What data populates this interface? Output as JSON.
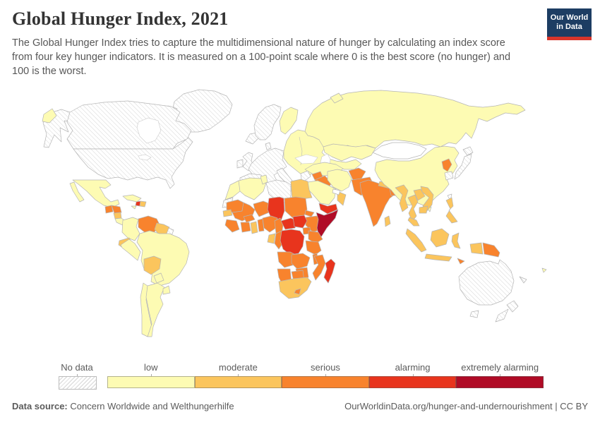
{
  "header": {
    "title": "Global Hunger Index, 2021",
    "subtitle": "The Global Hunger Index tries to capture the multidimensional nature of hunger by calculating an index score from four key hunger indicators. It is measured on a 100-point scale where 0 is the best score (no hunger) and 100 is the worst."
  },
  "logo": {
    "line1": "Our World",
    "line2": "in Data",
    "bg_color": "#1d3d63",
    "accent_color": "#d9352b"
  },
  "legend": {
    "no_data_label": "No data"
  },
  "footer": {
    "source_label": "Data source:",
    "source_value": " Concern Worldwide and Welthungerhilfe",
    "right_text": "OurWorldinData.org/hunger-and-undernourishment | CC BY"
  },
  "chart_data": {
    "type": "choropleth_map",
    "title": "Global Hunger Index, 2021",
    "unit": "Global Hunger Index severity category (100-point scale)",
    "legend_position": "bottom",
    "legend_categories": [
      {
        "key": "low",
        "label": "low"
      },
      {
        "key": "moderate",
        "label": "moderate"
      },
      {
        "key": "serious",
        "label": "serious"
      },
      {
        "key": "alarming",
        "label": "alarming"
      },
      {
        "key": "extremely_alarming",
        "label": "extremely alarming"
      }
    ],
    "colors": {
      "low": "#FDFBB3",
      "moderate": "#FBC55D",
      "serious": "#F8832D",
      "alarming": "#E8341D",
      "extremely_alarming": "#B00B26",
      "white": "#FFFFFF"
    },
    "countries": [
      {
        "id": "greenland",
        "name": "Greenland",
        "category": "no_data"
      },
      {
        "id": "arctic-islands-1",
        "name": "Canadian Arctic Islands",
        "category": "no_data"
      },
      {
        "id": "arctic-islands-2",
        "name": "Canadian Arctic Islands",
        "category": "no_data"
      },
      {
        "id": "arctic-islands-3",
        "name": "Canadian Arctic Islands",
        "category": "no_data"
      },
      {
        "id": "alaska",
        "name": "United States (Alaska)",
        "category": "no_data"
      },
      {
        "id": "canada",
        "name": "Canada",
        "category": "no_data"
      },
      {
        "id": "usa",
        "name": "United States",
        "category": "no_data"
      },
      {
        "id": "iceland",
        "name": "Iceland",
        "category": "no_data"
      },
      {
        "id": "norway-sweden",
        "name": "Norway and Sweden",
        "category": "no_data"
      },
      {
        "id": "denmark",
        "name": "Denmark",
        "category": "no_data"
      },
      {
        "id": "uk",
        "name": "United Kingdom",
        "category": "no_data"
      },
      {
        "id": "ireland",
        "name": "Ireland",
        "category": "no_data"
      },
      {
        "id": "western-europe",
        "name": "Western Europe",
        "category": "no_data"
      },
      {
        "id": "iberia",
        "name": "Spain and Portugal",
        "category": "no_data"
      },
      {
        "id": "italy",
        "name": "Italy",
        "category": "no_data"
      },
      {
        "id": "sicily",
        "name": "Italy (Sicily)",
        "category": "no_data"
      },
      {
        "id": "greece",
        "name": "Greece",
        "category": "no_data"
      },
      {
        "id": "libya",
        "name": "Libya",
        "category": "no_data"
      },
      {
        "id": "western-sahara",
        "name": "Western Sahara",
        "category": "no_data"
      },
      {
        "id": "french-guiana",
        "name": "French Guiana",
        "category": "no_data"
      },
      {
        "id": "japan-hokkaido",
        "name": "Japan (Hokkaido)",
        "category": "no_data"
      },
      {
        "id": "japan-main",
        "name": "Japan",
        "category": "no_data"
      },
      {
        "id": "south-korea",
        "name": "South Korea",
        "category": "no_data"
      },
      {
        "id": "australia",
        "name": "Australia",
        "category": "no_data"
      },
      {
        "id": "tasmania",
        "name": "Australia (Tasmania)",
        "category": "no_data"
      },
      {
        "id": "new-zealand-north",
        "name": "New Zealand (North Island)",
        "category": "no_data"
      },
      {
        "id": "new-zealand-south",
        "name": "New Zealand (South Island)",
        "category": "no_data"
      },
      {
        "id": "new-caledonia",
        "name": "New Caledonia",
        "category": "no_data"
      },
      {
        "id": "mongolia",
        "name": "Mongolia",
        "category": "white"
      },
      {
        "id": "uae",
        "name": "United Arab Emirates",
        "category": "white"
      },
      {
        "id": "taiwan",
        "name": "Taiwan",
        "category": "white"
      },
      {
        "id": "chukotka",
        "name": "Russia (Chukotka)",
        "category": "low"
      },
      {
        "id": "russia",
        "name": "Russia",
        "category": "low"
      },
      {
        "id": "novaya-zemlya",
        "name": "Russia (Novaya Zemlya)",
        "category": "low"
      },
      {
        "id": "finland",
        "name": "Finland",
        "category": "low"
      },
      {
        "id": "eastern-europe",
        "name": "Eastern Europe",
        "category": "low"
      },
      {
        "id": "turkey",
        "name": "Turkey",
        "category": "low"
      },
      {
        "id": "iran",
        "name": "Iran",
        "category": "low"
      },
      {
        "id": "saudi-arabia",
        "name": "Saudi Arabia",
        "category": "low"
      },
      {
        "id": "kazakhstan",
        "name": "Kazakhstan",
        "category": "low"
      },
      {
        "id": "central-asia-south",
        "name": "Uzbekistan and Turkmenistan",
        "category": "low"
      },
      {
        "id": "china",
        "name": "China",
        "category": "low"
      },
      {
        "id": "hainan",
        "name": "China (Hainan)",
        "category": "low"
      },
      {
        "id": "mexico",
        "name": "Mexico",
        "category": "low"
      },
      {
        "id": "baja",
        "name": "Mexico (Baja California)",
        "category": "low"
      },
      {
        "id": "cuba",
        "name": "Cuba",
        "category": "low"
      },
      {
        "id": "jamaica",
        "name": "Jamaica",
        "category": "low"
      },
      {
        "id": "costa-rica-panama",
        "name": "Costa Rica and Panama",
        "category": "low"
      },
      {
        "id": "colombia",
        "name": "Colombia",
        "category": "low"
      },
      {
        "id": "peru",
        "name": "Peru",
        "category": "low"
      },
      {
        "id": "brazil",
        "name": "Brazil",
        "category": "low"
      },
      {
        "id": "chile",
        "name": "Chile",
        "category": "low"
      },
      {
        "id": "argentina",
        "name": "Argentina",
        "category": "low"
      },
      {
        "id": "paraguay",
        "name": "Paraguay",
        "category": "low"
      },
      {
        "id": "uruguay",
        "name": "Uruguay",
        "category": "low"
      },
      {
        "id": "morocco",
        "name": "Morocco",
        "category": "low"
      },
      {
        "id": "algeria",
        "name": "Algeria",
        "category": "low"
      },
      {
        "id": "tunisia",
        "name": "Tunisia",
        "category": "low"
      },
      {
        "id": "fiji",
        "name": "Fiji",
        "category": "low"
      },
      {
        "id": "egypt",
        "name": "Egypt",
        "category": "moderate"
      },
      {
        "id": "guyana-suriname",
        "name": "Guyana and Suriname",
        "category": "moderate"
      },
      {
        "id": "ecuador",
        "name": "Ecuador",
        "category": "moderate"
      },
      {
        "id": "bolivia",
        "name": "Bolivia",
        "category": "moderate"
      },
      {
        "id": "senegal",
        "name": "Senegal",
        "category": "moderate"
      },
      {
        "id": "ghana",
        "name": "Ghana",
        "category": "moderate"
      },
      {
        "id": "gabon",
        "name": "Gabon",
        "category": "moderate"
      },
      {
        "id": "south-africa",
        "name": "South Africa",
        "category": "moderate"
      },
      {
        "id": "nepal",
        "name": "Nepal",
        "category": "moderate"
      },
      {
        "id": "myanmar",
        "name": "Myanmar",
        "category": "moderate"
      },
      {
        "id": "thailand",
        "name": "Thailand",
        "category": "moderate"
      },
      {
        "id": "laos",
        "name": "Laos",
        "category": "moderate"
      },
      {
        "id": "vietnam",
        "name": "Vietnam",
        "category": "moderate"
      },
      {
        "id": "cambodia",
        "name": "Cambodia",
        "category": "moderate"
      },
      {
        "id": "malaysia",
        "name": "Malaysia",
        "category": "moderate"
      },
      {
        "id": "indonesia-sumatra",
        "name": "Indonesia (Sumatra)",
        "category": "moderate"
      },
      {
        "id": "indonesia-java",
        "name": "Indonesia (Java)",
        "category": "moderate"
      },
      {
        "id": "indonesia-borneo",
        "name": "Indonesia (Borneo)",
        "category": "moderate"
      },
      {
        "id": "indonesia-sulawesi",
        "name": "Indonesia (Sulawesi)",
        "category": "moderate"
      },
      {
        "id": "indonesia-west-papua",
        "name": "Indonesia (West Papua)",
        "category": "moderate"
      },
      {
        "id": "philippines",
        "name": "Philippines",
        "category": "moderate"
      },
      {
        "id": "sri-lanka",
        "name": "Sri Lanka",
        "category": "moderate"
      },
      {
        "id": "dominican-republic",
        "name": "Dominican Republic",
        "category": "moderate"
      },
      {
        "id": "nicaragua",
        "name": "Nicaragua",
        "category": "moderate"
      },
      {
        "id": "oman",
        "name": "Oman",
        "category": "moderate"
      },
      {
        "id": "venezuela",
        "name": "Venezuela",
        "category": "serious"
      },
      {
        "id": "mauritania",
        "name": "Mauritania",
        "category": "serious"
      },
      {
        "id": "mali",
        "name": "Mali",
        "category": "serious"
      },
      {
        "id": "niger",
        "name": "Niger",
        "category": "serious"
      },
      {
        "id": "burkina-faso",
        "name": "Burkina Faso",
        "category": "serious"
      },
      {
        "id": "guinea",
        "name": "Guinea, Sierra Leone and Liberia",
        "category": "serious"
      },
      {
        "id": "cote-divoire",
        "name": "Cote d'Ivoire",
        "category": "serious"
      },
      {
        "id": "togo-benin",
        "name": "Togo and Benin",
        "category": "serious"
      },
      {
        "id": "nigeria",
        "name": "Nigeria",
        "category": "serious"
      },
      {
        "id": "cameroon",
        "name": "Cameroon",
        "category": "serious"
      },
      {
        "id": "sudan",
        "name": "Sudan",
        "category": "serious"
      },
      {
        "id": "eritrea",
        "name": "Eritrea",
        "category": "serious"
      },
      {
        "id": "ethiopia",
        "name": "Ethiopia",
        "category": "serious"
      },
      {
        "id": "kenya",
        "name": "Kenya",
        "category": "serious"
      },
      {
        "id": "uganda",
        "name": "Uganda",
        "category": "serious"
      },
      {
        "id": "tanzania",
        "name": "Tanzania",
        "category": "serious"
      },
      {
        "id": "congo",
        "name": "Republic of the Congo",
        "category": "serious"
      },
      {
        "id": "angola",
        "name": "Angola",
        "category": "serious"
      },
      {
        "id": "zambia",
        "name": "Zambia",
        "category": "serious"
      },
      {
        "id": "malawi",
        "name": "Malawi",
        "category": "serious"
      },
      {
        "id": "mozambique",
        "name": "Mozambique",
        "category": "serious"
      },
      {
        "id": "zimbabwe",
        "name": "Zimbabwe",
        "category": "serious"
      },
      {
        "id": "namibia",
        "name": "Namibia",
        "category": "serious"
      },
      {
        "id": "botswana",
        "name": "Botswana",
        "category": "serious"
      },
      {
        "id": "lesotho",
        "name": "Lesotho",
        "category": "serious"
      },
      {
        "id": "guatemala",
        "name": "Guatemala",
        "category": "serious"
      },
      {
        "id": "honduras",
        "name": "Honduras",
        "category": "serious"
      },
      {
        "id": "syria",
        "name": "Syria",
        "category": "serious"
      },
      {
        "id": "iraq",
        "name": "Iraq",
        "category": "serious"
      },
      {
        "id": "afghanistan",
        "name": "Afghanistan",
        "category": "serious"
      },
      {
        "id": "pakistan",
        "name": "Pakistan",
        "category": "serious"
      },
      {
        "id": "india",
        "name": "India",
        "category": "serious"
      },
      {
        "id": "bangladesh",
        "name": "Bangladesh",
        "category": "serious"
      },
      {
        "id": "north-korea",
        "name": "North Korea",
        "category": "serious"
      },
      {
        "id": "papua-new-guinea",
        "name": "Papua New Guinea",
        "category": "serious"
      },
      {
        "id": "timor",
        "name": "Timor-Leste",
        "category": "serious"
      },
      {
        "id": "chad",
        "name": "Chad",
        "category": "alarming"
      },
      {
        "id": "central-african-republic",
        "name": "Central African Republic",
        "category": "alarming"
      },
      {
        "id": "south-sudan",
        "name": "South Sudan",
        "category": "alarming"
      },
      {
        "id": "drc",
        "name": "Democratic Republic of Congo",
        "category": "alarming"
      },
      {
        "id": "madagascar",
        "name": "Madagascar",
        "category": "alarming"
      },
      {
        "id": "yemen",
        "name": "Yemen",
        "category": "alarming"
      },
      {
        "id": "haiti",
        "name": "Haiti",
        "category": "alarming"
      },
      {
        "id": "somalia",
        "name": "Somalia",
        "category": "extremely_alarming"
      }
    ]
  }
}
